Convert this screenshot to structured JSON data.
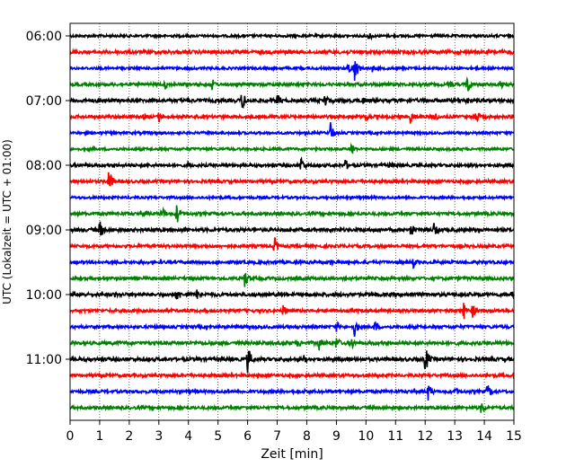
{
  "chart_data": {
    "type": "line",
    "title": "",
    "xlabel": "Zeit  [min]",
    "ylabel": "UTC (Lokalzeit = UTC + 01:00)",
    "xlim": [
      0,
      15
    ],
    "x_ticks": [
      0,
      1,
      2,
      3,
      4,
      5,
      6,
      7,
      8,
      9,
      10,
      11,
      12,
      13,
      14,
      15
    ],
    "x_grid": "dotted",
    "minutes_per_trace": 15,
    "trace_colors": [
      "#000000",
      "#ff0000",
      "#0000ff",
      "#008000"
    ],
    "y_tick_labels": [
      {
        "trace": 0,
        "label": "06:00"
      },
      {
        "trace": 4,
        "label": "07:00"
      },
      {
        "trace": 8,
        "label": "08:00"
      },
      {
        "trace": 12,
        "label": "09:00"
      },
      {
        "trace": 16,
        "label": "10:00"
      },
      {
        "trace": 20,
        "label": "11:00"
      }
    ],
    "traces": [
      {
        "start": "06:00",
        "color": "#000000",
        "noise": 0.25,
        "events": [
          {
            "t": 10.1,
            "amp": 0.7
          }
        ]
      },
      {
        "start": "06:15",
        "color": "#ff0000",
        "noise": 0.35,
        "events": []
      },
      {
        "start": "06:30",
        "color": "#0000ff",
        "noise": 0.25,
        "events": [
          {
            "t": 9.6,
            "amp": 1.9
          },
          {
            "t": 9.4,
            "amp": 1.0
          },
          {
            "t": 10.2,
            "amp": 0.6
          }
        ]
      },
      {
        "start": "06:45",
        "color": "#008000",
        "noise": 0.3,
        "events": [
          {
            "t": 3.2,
            "amp": 0.8
          },
          {
            "t": 4.8,
            "amp": 0.8
          },
          {
            "t": 12.8,
            "amp": 0.8
          },
          {
            "t": 13.4,
            "amp": 1.5
          },
          {
            "t": 14.5,
            "amp": 0.9
          }
        ]
      },
      {
        "start": "07:00",
        "color": "#000000",
        "noise": 0.35,
        "events": [
          {
            "t": 5.8,
            "amp": 1.4
          },
          {
            "t": 7.0,
            "amp": 1.0
          },
          {
            "t": 8.6,
            "amp": 1.1
          },
          {
            "t": 9.9,
            "amp": 0.6
          },
          {
            "t": 13.4,
            "amp": 0.6
          }
        ]
      },
      {
        "start": "07:15",
        "color": "#ff0000",
        "noise": 0.3,
        "events": [
          {
            "t": 2.5,
            "amp": 0.6
          },
          {
            "t": 3.0,
            "amp": 0.8
          },
          {
            "t": 10.0,
            "amp": 0.7
          },
          {
            "t": 11.5,
            "amp": 1.0
          },
          {
            "t": 12.3,
            "amp": 0.8
          },
          {
            "t": 13.7,
            "amp": 1.1
          }
        ]
      },
      {
        "start": "07:30",
        "color": "#0000ff",
        "noise": 0.25,
        "events": [
          {
            "t": 8.8,
            "amp": 1.4
          }
        ]
      },
      {
        "start": "07:45",
        "color": "#008000",
        "noise": 0.25,
        "events": [
          {
            "t": 9.5,
            "amp": 1.0
          }
        ]
      },
      {
        "start": "08:00",
        "color": "#000000",
        "noise": 0.3,
        "events": [
          {
            "t": 4.0,
            "amp": 0.6
          },
          {
            "t": 7.8,
            "amp": 1.2
          },
          {
            "t": 9.3,
            "amp": 0.8
          },
          {
            "t": 10.8,
            "amp": 0.5
          }
        ]
      },
      {
        "start": "08:15",
        "color": "#ff0000",
        "noise": 0.3,
        "events": [
          {
            "t": 1.3,
            "amp": 1.6
          }
        ]
      },
      {
        "start": "08:30",
        "color": "#0000ff",
        "noise": 0.25,
        "events": []
      },
      {
        "start": "08:45",
        "color": "#008000",
        "noise": 0.3,
        "events": [
          {
            "t": 2.5,
            "amp": 0.6
          },
          {
            "t": 3.1,
            "amp": 1.0
          },
          {
            "t": 3.6,
            "amp": 1.4
          }
        ]
      },
      {
        "start": "09:00",
        "color": "#000000",
        "noise": 0.35,
        "events": [
          {
            "t": 1.0,
            "amp": 1.3
          },
          {
            "t": 11.5,
            "amp": 1.2
          },
          {
            "t": 12.3,
            "amp": 1.2
          }
        ]
      },
      {
        "start": "09:15",
        "color": "#ff0000",
        "noise": 0.3,
        "events": [
          {
            "t": 6.9,
            "amp": 1.3
          }
        ]
      },
      {
        "start": "09:30",
        "color": "#0000ff",
        "noise": 0.3,
        "events": [
          {
            "t": 8.8,
            "amp": 0.5
          },
          {
            "t": 11.6,
            "amp": 0.8
          }
        ]
      },
      {
        "start": "09:45",
        "color": "#008000",
        "noise": 0.3,
        "events": [
          {
            "t": 5.9,
            "amp": 1.2
          }
        ]
      },
      {
        "start": "10:00",
        "color": "#000000",
        "noise": 0.35,
        "events": [
          {
            "t": 1.5,
            "amp": 0.5
          },
          {
            "t": 3.6,
            "amp": 1.1
          },
          {
            "t": 4.3,
            "amp": 1.0
          },
          {
            "t": 14.9,
            "amp": 0.7
          }
        ]
      },
      {
        "start": "10:15",
        "color": "#ff0000",
        "noise": 0.3,
        "events": [
          {
            "t": 7.2,
            "amp": 0.8
          },
          {
            "t": 13.3,
            "amp": 1.2
          },
          {
            "t": 13.6,
            "amp": 1.0
          }
        ]
      },
      {
        "start": "10:30",
        "color": "#0000ff",
        "noise": 0.3,
        "events": [
          {
            "t": 9.0,
            "amp": 0.8
          },
          {
            "t": 9.6,
            "amp": 1.4
          },
          {
            "t": 10.3,
            "amp": 0.9
          }
        ]
      },
      {
        "start": "10:45",
        "color": "#008000",
        "noise": 0.35,
        "events": [
          {
            "t": 7.7,
            "amp": 0.7
          },
          {
            "t": 8.4,
            "amp": 1.1
          },
          {
            "t": 9.0,
            "amp": 1.0
          },
          {
            "t": 9.5,
            "amp": 0.9
          }
        ]
      },
      {
        "start": "11:00",
        "color": "#000000",
        "noise": 0.35,
        "events": [
          {
            "t": 6.0,
            "amp": 1.8
          },
          {
            "t": 7.9,
            "amp": 0.6
          },
          {
            "t": 12.0,
            "amp": 1.8
          }
        ]
      },
      {
        "start": "11:15",
        "color": "#ff0000",
        "noise": 0.3,
        "events": []
      },
      {
        "start": "11:30",
        "color": "#0000ff",
        "noise": 0.3,
        "events": [
          {
            "t": 7.9,
            "amp": 0.5
          },
          {
            "t": 12.1,
            "amp": 1.2
          },
          {
            "t": 13.0,
            "amp": 0.7
          },
          {
            "t": 14.1,
            "amp": 1.1
          }
        ]
      },
      {
        "start": "11:45",
        "color": "#008000",
        "noise": 0.3,
        "events": [
          {
            "t": 13.9,
            "amp": 1.0
          }
        ]
      }
    ]
  }
}
